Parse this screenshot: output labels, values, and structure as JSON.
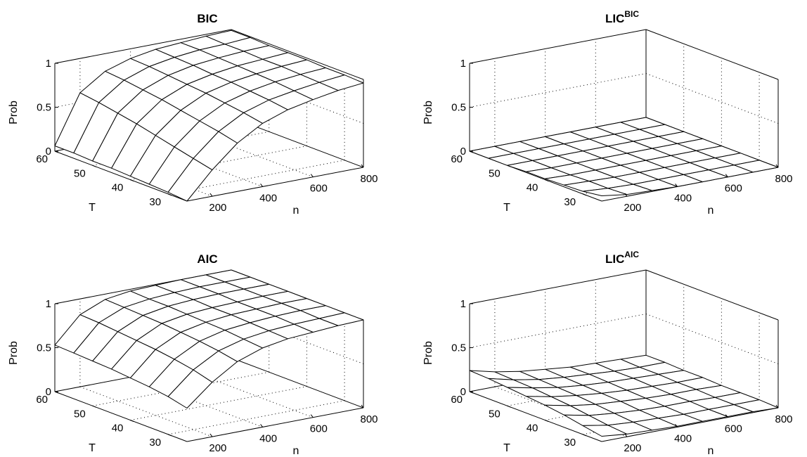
{
  "chart_data": [
    {
      "type": "surface",
      "title": "BIC",
      "title_sup": "",
      "xlabel": "n",
      "ylabel": "T",
      "zlabel": "Prob",
      "x_ticks": [
        "200",
        "400",
        "600",
        "800"
      ],
      "y_ticks": [
        "30",
        "40",
        "50",
        "60"
      ],
      "z_ticks": [
        "0",
        "0.5",
        "1"
      ],
      "xlim": [
        100,
        800
      ],
      "ylim": [
        25,
        60
      ],
      "zlim": [
        0,
        1
      ],
      "grid": true,
      "n": [
        100,
        200,
        300,
        400,
        500,
        600,
        700,
        800
      ],
      "T": [
        25,
        30,
        35,
        40,
        45,
        50,
        55,
        60
      ],
      "prob": [
        [
          0.0,
          0.3,
          0.55,
          0.72,
          0.82,
          0.88,
          0.93,
          0.96
        ],
        [
          0.02,
          0.35,
          0.6,
          0.76,
          0.85,
          0.9,
          0.94,
          0.97
        ],
        [
          0.03,
          0.4,
          0.64,
          0.79,
          0.87,
          0.92,
          0.95,
          0.97
        ],
        [
          0.04,
          0.45,
          0.68,
          0.82,
          0.89,
          0.93,
          0.96,
          0.98
        ],
        [
          0.05,
          0.5,
          0.72,
          0.84,
          0.9,
          0.94,
          0.96,
          0.98
        ],
        [
          0.05,
          0.54,
          0.75,
          0.86,
          0.92,
          0.95,
          0.97,
          0.98
        ],
        [
          0.06,
          0.58,
          0.78,
          0.88,
          0.93,
          0.96,
          0.97,
          0.99
        ],
        [
          0.06,
          0.61,
          0.8,
          0.89,
          0.94,
          0.96,
          0.98,
          0.99
        ]
      ]
    },
    {
      "type": "surface",
      "title": "LIC",
      "title_sup": "BIC",
      "xlabel": "n",
      "ylabel": "T",
      "zlabel": "Prob",
      "x_ticks": [
        "200",
        "400",
        "600",
        "800"
      ],
      "y_ticks": [
        "30",
        "40",
        "50",
        "60"
      ],
      "z_ticks": [
        "0",
        "0.5",
        "1"
      ],
      "xlim": [
        100,
        800
      ],
      "ylim": [
        25,
        60
      ],
      "zlim": [
        0,
        1
      ],
      "grid": true,
      "n": [
        100,
        200,
        300,
        400,
        500,
        600,
        700,
        800
      ],
      "T": [
        25,
        30,
        35,
        40,
        45,
        50,
        55,
        60
      ],
      "prob": [
        [
          0.06,
          0.02,
          0.01,
          0.0,
          0.0,
          0.0,
          0.0,
          0.0
        ],
        [
          0.03,
          0.01,
          0.0,
          0.0,
          0.0,
          0.0,
          0.0,
          0.0
        ],
        [
          0.02,
          0.01,
          0.0,
          0.0,
          0.0,
          0.0,
          0.0,
          0.0
        ],
        [
          0.01,
          0.0,
          0.0,
          0.0,
          0.0,
          0.0,
          0.0,
          0.0
        ],
        [
          0.01,
          0.0,
          0.0,
          0.0,
          0.0,
          0.0,
          0.0,
          0.0
        ],
        [
          0.0,
          0.0,
          0.0,
          0.0,
          0.0,
          0.0,
          0.0,
          0.0
        ],
        [
          0.0,
          0.0,
          0.0,
          0.0,
          0.0,
          0.0,
          0.0,
          0.0
        ],
        [
          0.0,
          0.0,
          0.0,
          0.0,
          0.0,
          0.0,
          0.0,
          0.0
        ]
      ]
    },
    {
      "type": "surface",
      "title": "AIC",
      "title_sup": "",
      "xlabel": "n",
      "ylabel": "T",
      "zlabel": "Prob",
      "x_ticks": [
        "200",
        "400",
        "600",
        "800"
      ],
      "y_ticks": [
        "30",
        "40",
        "50",
        "60"
      ],
      "z_ticks": [
        "0",
        "0.5",
        "1"
      ],
      "xlim": [
        100,
        800
      ],
      "ylim": [
        25,
        60
      ],
      "zlim": [
        0,
        1
      ],
      "grid": true,
      "n": [
        100,
        200,
        300,
        400,
        500,
        600,
        700,
        800
      ],
      "T": [
        25,
        30,
        35,
        40,
        45,
        50,
        55,
        60
      ],
      "prob": [
        [
          0.38,
          0.62,
          0.8,
          0.9,
          0.95,
          0.97,
          0.99,
          1.0
        ],
        [
          0.43,
          0.68,
          0.84,
          0.92,
          0.96,
          0.98,
          0.99,
          1.0
        ],
        [
          0.46,
          0.72,
          0.87,
          0.94,
          0.97,
          0.99,
          1.0,
          1.0
        ],
        [
          0.48,
          0.75,
          0.89,
          0.95,
          0.98,
          0.99,
          1.0,
          1.0
        ],
        [
          0.5,
          0.77,
          0.91,
          0.96,
          0.98,
          0.99,
          1.0,
          1.0
        ],
        [
          0.51,
          0.79,
          0.92,
          0.97,
          0.99,
          1.0,
          1.0,
          1.0
        ],
        [
          0.52,
          0.81,
          0.93,
          0.97,
          0.99,
          1.0,
          1.0,
          1.0
        ],
        [
          0.53,
          0.82,
          0.94,
          0.98,
          0.99,
          1.0,
          1.0,
          1.0
        ]
      ]
    },
    {
      "type": "surface",
      "title": "LIC",
      "title_sup": "AIC",
      "xlabel": "n",
      "ylabel": "T",
      "zlabel": "Prob",
      "x_ticks": [
        "200",
        "400",
        "600",
        "800"
      ],
      "y_ticks": [
        "30",
        "40",
        "50",
        "60"
      ],
      "z_ticks": [
        "0",
        "0.5",
        "1"
      ],
      "xlim": [
        100,
        800
      ],
      "ylim": [
        25,
        60
      ],
      "zlim": [
        0,
        1
      ],
      "grid": true,
      "n": [
        100,
        200,
        300,
        400,
        500,
        600,
        700,
        800
      ],
      "T": [
        25,
        30,
        35,
        40,
        45,
        50,
        55,
        60
      ],
      "prob": [
        [
          0.06,
          0.03,
          0.02,
          0.01,
          0.01,
          0.01,
          0.01,
          0.0
        ],
        [
          0.1,
          0.05,
          0.03,
          0.02,
          0.01,
          0.01,
          0.01,
          0.01
        ],
        [
          0.14,
          0.08,
          0.05,
          0.03,
          0.02,
          0.02,
          0.01,
          0.01
        ],
        [
          0.17,
          0.11,
          0.07,
          0.05,
          0.03,
          0.02,
          0.02,
          0.01
        ],
        [
          0.19,
          0.13,
          0.09,
          0.06,
          0.04,
          0.03,
          0.02,
          0.02
        ],
        [
          0.21,
          0.15,
          0.1,
          0.07,
          0.05,
          0.04,
          0.03,
          0.02
        ],
        [
          0.23,
          0.16,
          0.11,
          0.08,
          0.06,
          0.04,
          0.03,
          0.03
        ],
        [
          0.24,
          0.17,
          0.12,
          0.09,
          0.06,
          0.05,
          0.04,
          0.03
        ]
      ]
    }
  ]
}
